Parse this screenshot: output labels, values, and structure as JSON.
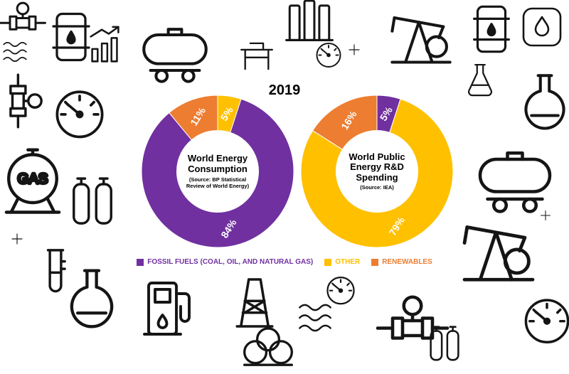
{
  "title": "2019",
  "legend": [
    {
      "label": "FOSSIL FUELS (COAL, OIL, AND NATURAL GAS)",
      "color": "#7030A0"
    },
    {
      "label": "OTHER",
      "color": "#FFC000"
    },
    {
      "label": "RENEWABLES",
      "color": "#ED7D31"
    }
  ],
  "decor": {
    "gas_label": "GAS"
  },
  "background_icon_names": [
    "valve-pipeline-icon",
    "oil-barrel-icon",
    "growth-chart-icon",
    "tanker-wagon-icon",
    "table-icon",
    "refinery-columns-icon",
    "gauge-icon",
    "pumpjack-icon",
    "oil-drop-icon",
    "pressure-gauge-icon",
    "gas-tank-icon",
    "gas-cylinders-icon",
    "test-tube-icon",
    "round-flask-icon",
    "erlenmeyer-flask-icon",
    "fuel-pump-icon",
    "oil-derrick-icon",
    "waves-icon",
    "storage-tanks-icon",
    "plus-icon"
  ],
  "chart_data": [
    {
      "type": "pie",
      "donut": true,
      "title": "World Energy Consumption",
      "subtitle": "(Source: BP Statistical Review of World Energy)",
      "units": "percent",
      "segments": [
        {
          "name": "Other",
          "value": 5,
          "label": "5%",
          "color": "#FFC000"
        },
        {
          "name": "Fossil Fuels",
          "value": 84,
          "label": "84%",
          "color": "#7030A0"
        },
        {
          "name": "Renewables",
          "value": 11,
          "label": "11%",
          "color": "#ED7D31"
        }
      ]
    },
    {
      "type": "pie",
      "donut": true,
      "title": "World Public Energy R&D Spending",
      "subtitle": "(Source: IEA)",
      "units": "percent",
      "segments": [
        {
          "name": "Fossil Fuels",
          "value": 5,
          "label": "5%",
          "color": "#7030A0"
        },
        {
          "name": "Other",
          "value": 79,
          "label": "79%",
          "color": "#FFC000"
        },
        {
          "name": "Renewables",
          "value": 16,
          "label": "16%",
          "color": "#ED7D31"
        }
      ]
    }
  ]
}
